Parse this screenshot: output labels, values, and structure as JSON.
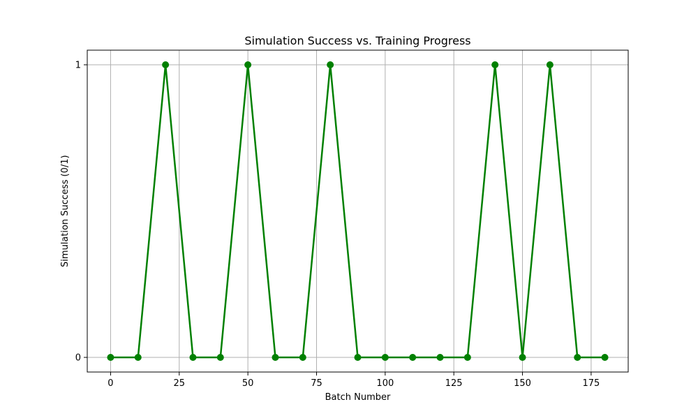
{
  "chart_data": {
    "type": "line",
    "title": "Simulation Success vs. Training Progress",
    "xlabel": "Batch Number",
    "ylabel": "Simulation Success (0/1)",
    "x": [
      0,
      10,
      20,
      30,
      40,
      50,
      60,
      70,
      80,
      90,
      100,
      110,
      120,
      130,
      140,
      150,
      160,
      170,
      180
    ],
    "series": [
      {
        "values": [
          0,
          0,
          1,
          0,
          0,
          1,
          0,
          0,
          1,
          0,
          0,
          0,
          0,
          0,
          1,
          0,
          1,
          0,
          0
        ],
        "color": "#008000",
        "marker": "circle"
      }
    ],
    "xlim": [
      -8.5,
      188.5
    ],
    "ylim": [
      -0.05,
      1.05
    ],
    "xticks": [
      0,
      25,
      50,
      75,
      100,
      125,
      150,
      175
    ],
    "xtick_labels": [
      "0",
      "25",
      "50",
      "75",
      "100",
      "125",
      "150",
      "175"
    ],
    "yticks": [
      0,
      1
    ],
    "ytick_labels": [
      "0",
      "1"
    ],
    "grid": true,
    "grid_color": "#b0b0b0"
  }
}
